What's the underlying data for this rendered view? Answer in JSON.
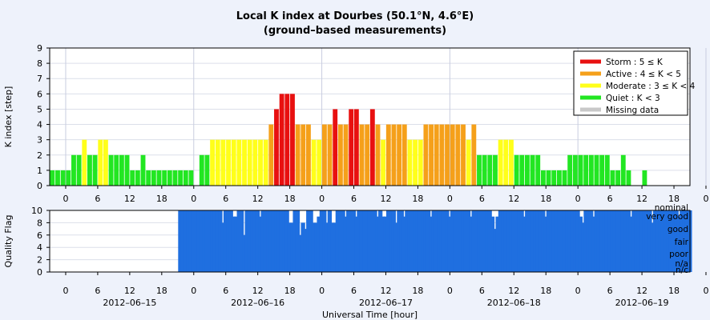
{
  "chart_data": [
    {
      "type": "bar",
      "title": "Local K index at Dourbes (50.1°N, 4.6°E)",
      "subtitle": "(ground–based measurements)",
      "xlabel": "",
      "ylabel": "K index [step]",
      "ylim": [
        0,
        9
      ],
      "yticks": [
        0,
        1,
        2,
        3,
        4,
        5,
        6,
        7,
        8,
        9
      ],
      "xticks": [
        "0",
        "6",
        "12",
        "18",
        "0",
        "6",
        "12",
        "18",
        "0",
        "6",
        "12",
        "18",
        "0",
        "6",
        "12",
        "18",
        "0",
        "6",
        "12",
        "18",
        "0"
      ],
      "grid": true,
      "legend_position": "top-right",
      "legend": [
        {
          "label": "Storm : 5 ≤ K",
          "color": "#e81010"
        },
        {
          "label": "Active : 4 ≤ K < 5",
          "color": "#f5a01a"
        },
        {
          "label": "Moderate : 3 ≤ K < 4",
          "color": "#ffff1a"
        },
        {
          "label": "Quiet : K < 3",
          "color": "#22e622"
        },
        {
          "label": "Missing data",
          "color": "#c8c8c8"
        }
      ],
      "bin_hours": 1,
      "start": "2012-06-14 21:00 UT",
      "values": [
        1,
        1,
        1,
        1,
        2,
        2,
        3,
        2,
        2,
        3,
        3,
        2,
        2,
        2,
        2,
        1,
        1,
        2,
        1,
        1,
        1,
        1,
        1,
        1,
        1,
        1,
        1,
        0,
        2,
        2,
        3,
        3,
        3,
        3,
        3,
        3,
        3,
        3,
        3,
        3,
        3,
        4,
        5,
        6,
        6,
        6,
        4,
        4,
        4,
        3,
        3,
        4,
        4,
        5,
        4,
        4,
        5,
        5,
        4,
        4,
        5,
        4,
        3,
        4,
        4,
        4,
        4,
        3,
        3,
        3,
        4,
        4,
        4,
        4,
        4,
        4,
        4,
        4,
        3,
        4,
        2,
        2,
        2,
        2,
        3,
        3,
        3,
        2,
        2,
        2,
        2,
        2,
        1,
        1,
        1,
        1,
        1,
        2,
        2,
        2,
        2,
        2,
        2,
        2,
        2,
        1,
        1,
        2,
        1,
        0,
        0,
        1
      ]
    },
    {
      "type": "bar",
      "title": "",
      "xlabel": "Universal Time [hour]",
      "ylabel": "Quality Flag",
      "ylim": [
        0,
        10
      ],
      "yticks": [
        0,
        2,
        4,
        6,
        8,
        10
      ],
      "right_labels": [
        "nominal",
        "very good",
        "good",
        "fair",
        "poor",
        "n/a",
        "n/c"
      ],
      "xticks": [
        "0",
        "6",
        "12",
        "18",
        "0",
        "6",
        "12",
        "18",
        "0",
        "6",
        "12",
        "18",
        "0",
        "6",
        "12",
        "18",
        "0",
        "6",
        "12",
        "18",
        "0"
      ],
      "date_labels": [
        "2012–06–15",
        "2012–06–16",
        "2012–06–17",
        "2012–06–18",
        "2012–06–19"
      ],
      "color": "#1f6fe0",
      "bin_minutes": 60,
      "values": [
        10,
        10,
        10,
        10,
        10,
        10,
        10,
        10,
        10,
        10,
        10,
        10,
        10,
        10,
        10,
        10,
        8,
        10,
        10,
        10,
        9,
        9,
        10,
        10,
        6,
        10,
        10,
        10,
        10,
        10,
        9,
        10,
        10,
        10,
        10,
        10,
        10,
        10,
        10,
        10,
        10,
        8,
        8,
        10,
        10,
        6,
        8,
        7,
        10,
        10,
        8,
        8,
        9,
        10,
        10,
        8,
        10,
        8,
        8,
        10,
        10,
        10,
        9,
        10,
        10,
        10,
        9,
        10,
        10,
        10,
        10,
        10,
        10,
        10,
        9,
        10,
        9,
        9,
        10,
        10,
        10,
        8,
        10,
        10,
        9,
        10,
        10,
        10,
        10,
        10,
        10,
        10,
        10,
        10,
        9,
        10,
        10,
        10,
        10,
        10,
        10,
        9,
        10,
        10,
        10,
        10,
        10,
        10,
        10,
        9,
        10,
        10,
        10,
        10,
        10,
        10,
        10,
        9,
        7,
        9,
        10,
        10,
        10,
        10,
        10,
        10,
        10,
        10,
        10,
        9,
        10,
        10,
        10,
        10,
        10,
        10,
        10,
        9,
        10,
        10,
        10,
        10,
        10,
        10,
        10,
        10,
        10,
        10,
        10,
        10,
        9,
        8,
        10,
        10,
        10,
        9,
        10,
        10,
        10,
        10,
        10,
        10,
        10,
        10,
        10,
        10,
        10,
        10,
        10,
        9,
        10,
        10,
        10,
        10,
        10,
        10,
        10,
        8,
        10,
        10,
        10,
        10,
        10,
        10,
        10,
        10,
        10,
        9,
        10,
        10,
        10,
        10,
        10,
        10,
        10,
        9,
        10,
        10,
        10,
        10,
        10,
        10,
        10,
        10,
        10,
        7,
        10,
        10,
        9,
        10,
        10
      ]
    }
  ]
}
